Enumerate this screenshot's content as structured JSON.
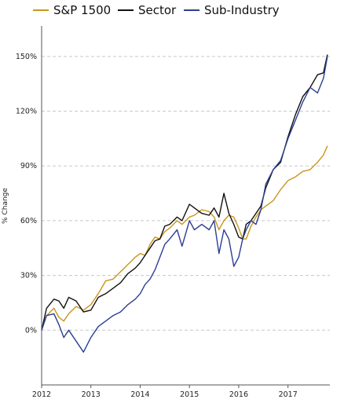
{
  "chart_data": {
    "type": "line",
    "title": "",
    "xlabel": "",
    "ylabel": "% Change",
    "ylim": [
      -30,
      165
    ],
    "xlim": [
      2012.0,
      2017.85
    ],
    "grid": "horizontal-dashed",
    "legend_position": "top",
    "x_tick_labels": [
      "2012",
      "2013",
      "2014",
      "2015",
      "2016",
      "2017"
    ],
    "y_tick_labels": [
      "0%",
      "30%",
      "60%",
      "90%",
      "120%",
      "150%"
    ],
    "y_ticks": [
      0,
      30,
      60,
      90,
      120,
      150
    ],
    "series": [
      {
        "name": "S&P 1500",
        "color": "#c9961a",
        "x": [
          2012.0,
          2012.1,
          2012.25,
          2012.35,
          2012.45,
          2012.55,
          2012.7,
          2012.85,
          2013.0,
          2013.15,
          2013.3,
          2013.45,
          2013.6,
          2013.75,
          2013.9,
          2014.0,
          2014.1,
          2014.2,
          2014.3,
          2014.4,
          2014.5,
          2014.6,
          2014.75,
          2014.85,
          2015.0,
          2015.1,
          2015.25,
          2015.4,
          2015.5,
          2015.6,
          2015.7,
          2015.8,
          2015.9,
          2016.0,
          2016.08,
          2016.15,
          2016.25,
          2016.35,
          2016.45,
          2016.55,
          2016.7,
          2016.85,
          2017.0,
          2017.15,
          2017.3,
          2017.45,
          2017.6,
          2017.72,
          2017.8
        ],
        "values": [
          0,
          8,
          12,
          7,
          5,
          9,
          13,
          11,
          14,
          20,
          27,
          28,
          32,
          36,
          40,
          42,
          41,
          47,
          51,
          50,
          54,
          56,
          60,
          58,
          62,
          63,
          66,
          65,
          62,
          55,
          60,
          63,
          62,
          56,
          50,
          50,
          57,
          62,
          66,
          68,
          71,
          77,
          82,
          84,
          87,
          88,
          92,
          96,
          101
        ]
      },
      {
        "name": "Sector",
        "color": "#111111",
        "x": [
          2012.0,
          2012.1,
          2012.25,
          2012.35,
          2012.45,
          2012.55,
          2012.7,
          2012.85,
          2013.0,
          2013.15,
          2013.3,
          2013.45,
          2013.6,
          2013.75,
          2013.9,
          2014.0,
          2014.1,
          2014.2,
          2014.3,
          2014.4,
          2014.5,
          2014.6,
          2014.75,
          2014.85,
          2015.0,
          2015.1,
          2015.25,
          2015.4,
          2015.5,
          2015.6,
          2015.7,
          2015.8,
          2015.9,
          2016.0,
          2016.08,
          2016.15,
          2016.25,
          2016.35,
          2016.45,
          2016.55,
          2016.7,
          2016.85,
          2017.0,
          2017.15,
          2017.3,
          2017.45,
          2017.6,
          2017.72,
          2017.8
        ],
        "values": [
          0,
          12,
          17,
          16,
          12,
          18,
          16,
          10,
          11,
          18,
          20,
          23,
          26,
          31,
          34,
          37,
          41,
          45,
          49,
          50,
          57,
          58,
          62,
          60,
          69,
          67,
          64,
          63,
          67,
          62,
          75,
          64,
          58,
          51,
          50,
          58,
          60,
          64,
          68,
          78,
          88,
          92,
          106,
          118,
          128,
          133,
          140,
          141,
          151
        ]
      },
      {
        "name": "Sub-Industry",
        "color": "#2b3f91",
        "x": [
          2012.0,
          2012.1,
          2012.25,
          2012.35,
          2012.45,
          2012.55,
          2012.7,
          2012.85,
          2013.0,
          2013.15,
          2013.3,
          2013.45,
          2013.6,
          2013.75,
          2013.9,
          2014.0,
          2014.1,
          2014.2,
          2014.3,
          2014.4,
          2014.5,
          2014.6,
          2014.75,
          2014.85,
          2015.0,
          2015.1,
          2015.25,
          2015.4,
          2015.5,
          2015.6,
          2015.7,
          2015.8,
          2015.9,
          2016.0,
          2016.08,
          2016.15,
          2016.25,
          2016.35,
          2016.45,
          2016.55,
          2016.7,
          2016.85,
          2017.0,
          2017.15,
          2017.3,
          2017.45,
          2017.6,
          2017.72,
          2017.8
        ],
        "values": [
          0,
          8,
          9,
          3,
          -4,
          0,
          -6,
          -12,
          -4,
          2,
          5,
          8,
          10,
          14,
          17,
          20,
          25,
          28,
          33,
          40,
          47,
          50,
          55,
          46,
          60,
          55,
          58,
          55,
          60,
          42,
          55,
          50,
          35,
          40,
          50,
          55,
          60,
          58,
          66,
          80,
          88,
          93,
          105,
          115,
          125,
          133,
          130,
          138,
          150
        ]
      }
    ]
  }
}
